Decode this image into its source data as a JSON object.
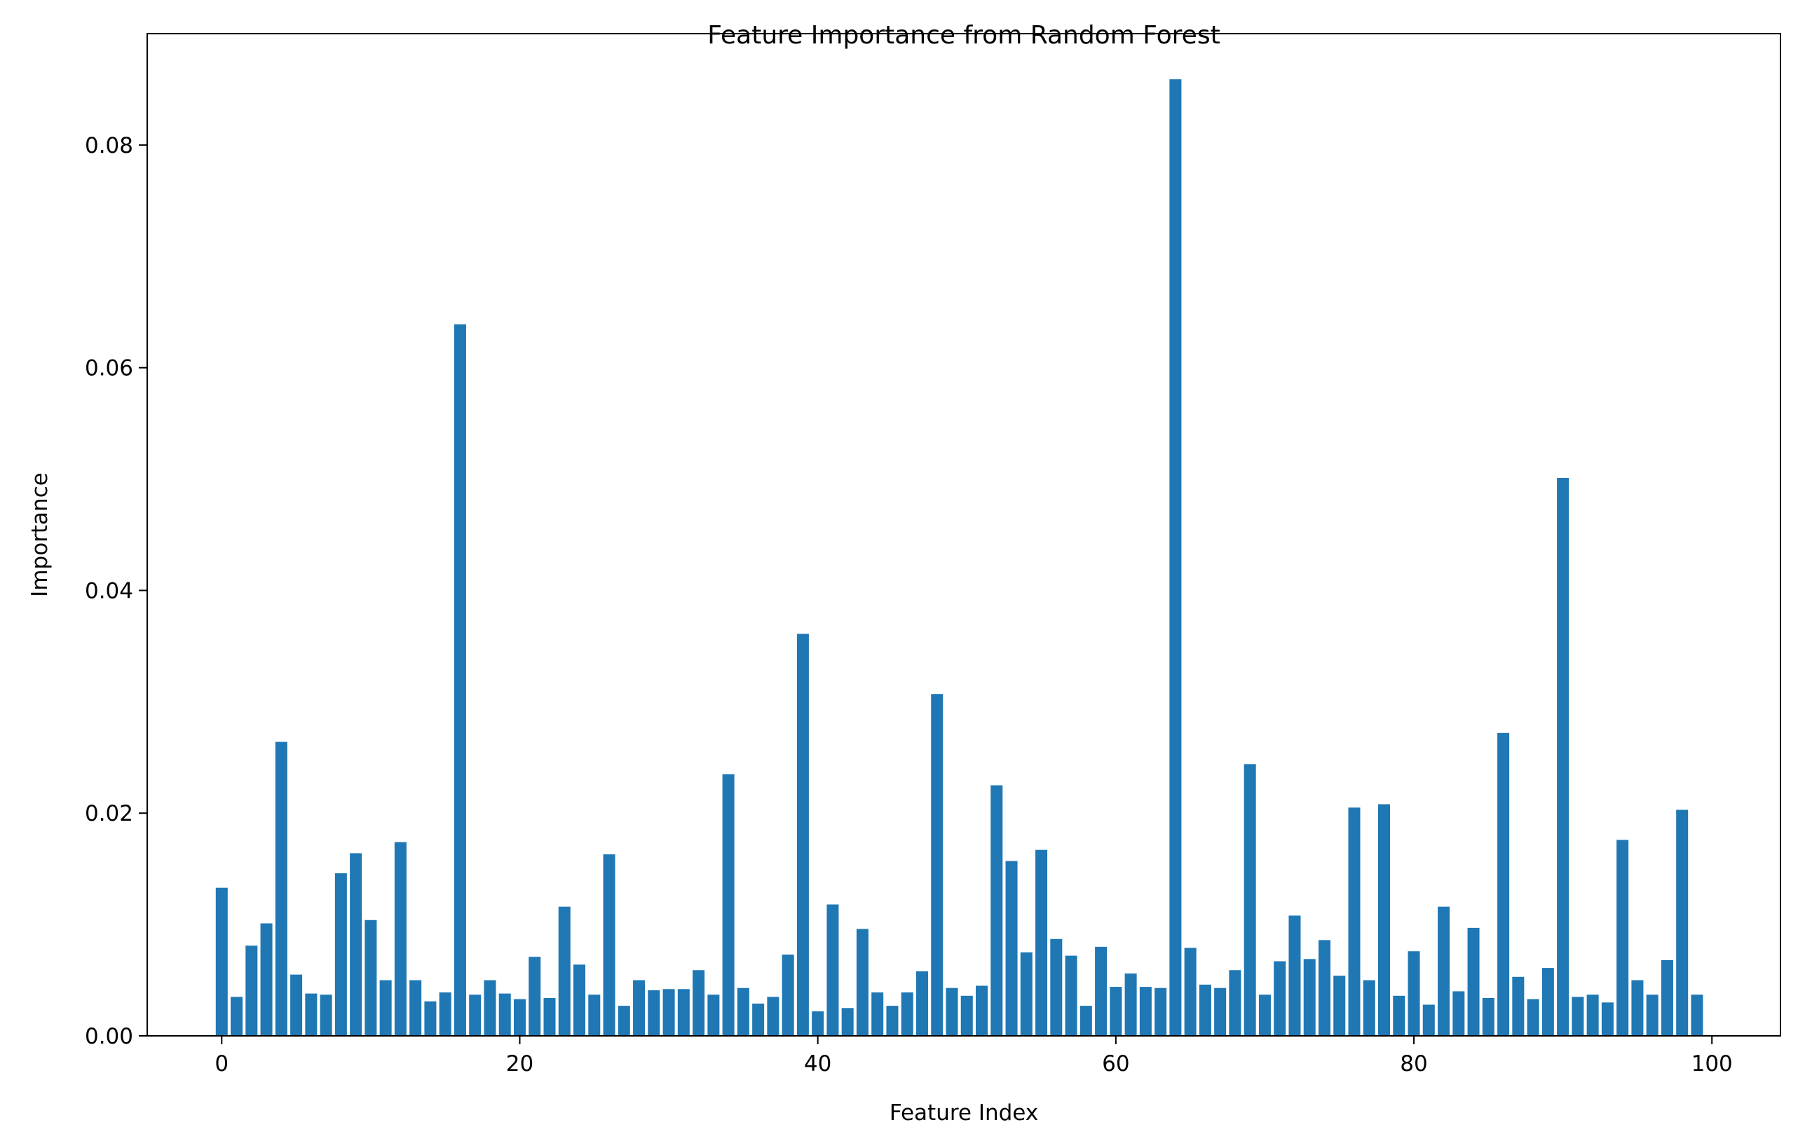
{
  "chart_data": {
    "type": "bar",
    "title": "Feature Importance from Random Forest",
    "xlabel": "Feature Index",
    "ylabel": "Importance",
    "xlim": [
      -5,
      104.6
    ],
    "ylim": [
      0,
      0.09
    ],
    "x_ticks": [
      0,
      20,
      40,
      60,
      80,
      100
    ],
    "x_tick_labels": [
      "0",
      "20",
      "40",
      "60",
      "80",
      "100"
    ],
    "y_ticks": [
      0,
      0.02,
      0.04,
      0.06,
      0.08
    ],
    "y_tick_labels": [
      "0.00",
      "0.02",
      "0.04",
      "0.06",
      "0.08"
    ],
    "grid": false,
    "legend": "none",
    "bar_color": "#1f77b4",
    "x": [
      0,
      1,
      2,
      3,
      4,
      5,
      6,
      7,
      8,
      9,
      10,
      11,
      12,
      13,
      14,
      15,
      16,
      17,
      18,
      19,
      20,
      21,
      22,
      23,
      24,
      25,
      26,
      27,
      28,
      29,
      30,
      31,
      32,
      33,
      34,
      35,
      36,
      37,
      38,
      39,
      40,
      41,
      42,
      43,
      44,
      45,
      46,
      47,
      48,
      49,
      50,
      51,
      52,
      53,
      54,
      55,
      56,
      57,
      58,
      59,
      60,
      61,
      62,
      63,
      64,
      65,
      66,
      67,
      68,
      69,
      70,
      71,
      72,
      73,
      74,
      75,
      76,
      77,
      78,
      79,
      80,
      81,
      82,
      83,
      84,
      85,
      86,
      87,
      88,
      89,
      90,
      91,
      92,
      93,
      94,
      95,
      96,
      97,
      98,
      99
    ],
    "values": [
      0.0133,
      0.0035,
      0.0081,
      0.0101,
      0.0264,
      0.0055,
      0.0038,
      0.0037,
      0.0146,
      0.0164,
      0.0104,
      0.005,
      0.0174,
      0.005,
      0.0031,
      0.0039,
      0.0639,
      0.0037,
      0.005,
      0.0038,
      0.0033,
      0.0071,
      0.0034,
      0.0116,
      0.0064,
      0.0037,
      0.0163,
      0.0027,
      0.005,
      0.0041,
      0.0042,
      0.0042,
      0.0059,
      0.0037,
      0.0235,
      0.0043,
      0.0029,
      0.0035,
      0.0073,
      0.0361,
      0.0022,
      0.0118,
      0.0025,
      0.0096,
      0.0039,
      0.0027,
      0.0039,
      0.0058,
      0.0307,
      0.0043,
      0.0036,
      0.0045,
      0.0225,
      0.0157,
      0.0075,
      0.0167,
      0.0087,
      0.0072,
      0.0027,
      0.008,
      0.0044,
      0.0056,
      0.0044,
      0.0043,
      0.0859,
      0.0079,
      0.0046,
      0.0043,
      0.0059,
      0.0244,
      0.0037,
      0.0067,
      0.0108,
      0.0069,
      0.0086,
      0.0054,
      0.0205,
      0.005,
      0.0208,
      0.0036,
      0.0076,
      0.0028,
      0.0116,
      0.004,
      0.0097,
      0.0034,
      0.0272,
      0.0053,
      0.0033,
      0.0061,
      0.0501,
      0.0035,
      0.0037,
      0.003,
      0.0176,
      0.005,
      0.0037,
      0.0068,
      0.0203,
      0.0037
    ]
  }
}
